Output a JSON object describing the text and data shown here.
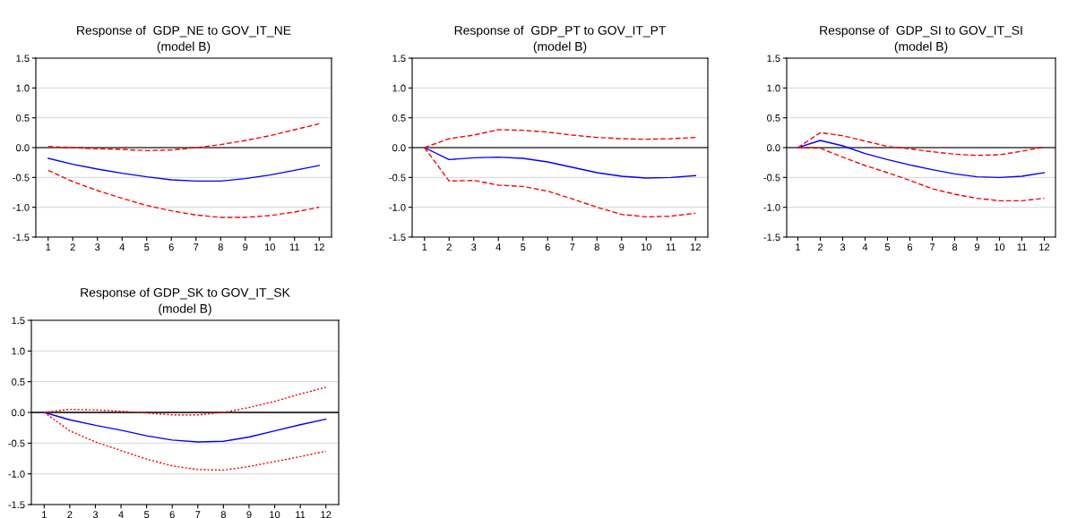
{
  "chart_data": [
    {
      "type": "line",
      "title": "Response of  GDP_NE to GOV_IT_NE",
      "subtitle": "(model B)",
      "categories": [
        "1",
        "2",
        "3",
        "4",
        "5",
        "6",
        "7",
        "8",
        "9",
        "10",
        "11",
        "12"
      ],
      "series": [
        {
          "color": "#0000ff",
          "line_style": "solid",
          "values": [
            -0.18,
            -0.28,
            -0.36,
            -0.43,
            -0.49,
            -0.54,
            -0.56,
            -0.56,
            -0.52,
            -0.46,
            -0.38,
            -0.3
          ]
        },
        {
          "color": "#ff0000",
          "line_style": "dashed",
          "values": [
            0.02,
            0.0,
            -0.02,
            -0.03,
            -0.05,
            -0.04,
            0.0,
            0.05,
            0.12,
            0.2,
            0.3,
            0.4
          ]
        },
        {
          "color": "#ff0000",
          "line_style": "dashed",
          "values": [
            -0.38,
            -0.57,
            -0.72,
            -0.85,
            -0.97,
            -1.06,
            -1.13,
            -1.17,
            -1.17,
            -1.14,
            -1.08,
            -1.0
          ]
        }
      ],
      "ylim": [
        -1.5,
        1.5
      ],
      "yticks": [
        {
          "value": -1.5,
          "label": "-1.5"
        },
        {
          "value": -1.0,
          "label": "-1.0"
        },
        {
          "value": -0.5,
          "label": "-0.5"
        },
        {
          "value": 0.0,
          "label": "0.0"
        },
        {
          "value": 0.5,
          "label": "0.5"
        },
        {
          "value": 1.0,
          "label": "1.0"
        },
        {
          "value": 1.5,
          "label": "1.5"
        }
      ],
      "ref_lines": [
        {
          "axis": "y",
          "value": 0,
          "color": "#404040"
        }
      ],
      "grid": "y"
    },
    {
      "type": "line",
      "title": "Response of  GDP_PT to GOV_IT_PT",
      "subtitle": "(model B)",
      "categories": [
        "1",
        "2",
        "3",
        "4",
        "5",
        "6",
        "7",
        "8",
        "9",
        "10",
        "11",
        "12"
      ],
      "series": [
        {
          "color": "#0000ff",
          "line_style": "solid",
          "values": [
            0,
            -0.2,
            -0.17,
            -0.16,
            -0.18,
            -0.24,
            -0.33,
            -0.42,
            -0.48,
            -0.51,
            -0.5,
            -0.47
          ]
        },
        {
          "color": "#ff0000",
          "line_style": "dashed",
          "values": [
            0,
            0.15,
            0.21,
            0.3,
            0.29,
            0.26,
            0.21,
            0.17,
            0.15,
            0.14,
            0.15,
            0.17
          ]
        },
        {
          "color": "#ff0000",
          "line_style": "dashed",
          "values": [
            0,
            -0.56,
            -0.55,
            -0.63,
            -0.65,
            -0.73,
            -0.86,
            -1.0,
            -1.12,
            -1.16,
            -1.15,
            -1.1
          ]
        }
      ],
      "ylim": [
        -1.5,
        1.5
      ],
      "yticks": [
        {
          "value": -1.5,
          "label": "-1.5"
        },
        {
          "value": -1.0,
          "label": "-1.0"
        },
        {
          "value": -0.5,
          "label": "-0.5"
        },
        {
          "value": 0.0,
          "label": "0.0"
        },
        {
          "value": 0.5,
          "label": "0.5"
        },
        {
          "value": 1.0,
          "label": "1.0"
        },
        {
          "value": 1.5,
          "label": "1.5"
        }
      ],
      "ref_lines": [
        {
          "axis": "y",
          "value": 0,
          "color": "#404040"
        }
      ],
      "grid": "y"
    },
    {
      "type": "line",
      "title": "Response of  GDP_SI to GOV_IT_SI",
      "subtitle": "(model B)",
      "categories": [
        "1",
        "2",
        "3",
        "4",
        "5",
        "6",
        "7",
        "8",
        "9",
        "10",
        "11",
        "12"
      ],
      "series": [
        {
          "color": "#0000ff",
          "line_style": "solid",
          "values": [
            0,
            0.12,
            0.03,
            -0.1,
            -0.2,
            -0.29,
            -0.37,
            -0.44,
            -0.49,
            -0.5,
            -0.48,
            -0.42
          ]
        },
        {
          "color": "#ff0000",
          "line_style": "dashed",
          "values": [
            0,
            0.25,
            0.2,
            0.11,
            0.02,
            -0.02,
            -0.07,
            -0.11,
            -0.13,
            -0.12,
            -0.06,
            0.01
          ]
        },
        {
          "color": "#ff0000",
          "line_style": "dashed",
          "values": [
            0,
            -0.01,
            -0.16,
            -0.3,
            -0.42,
            -0.55,
            -0.69,
            -0.78,
            -0.85,
            -0.89,
            -0.89,
            -0.85
          ]
        }
      ],
      "ylim": [
        -1.5,
        1.5
      ],
      "yticks": [
        {
          "value": -1.5,
          "label": "-1.5"
        },
        {
          "value": -1.0,
          "label": "-1.0"
        },
        {
          "value": -0.5,
          "label": "-0.5"
        },
        {
          "value": 0.0,
          "label": "0.0"
        },
        {
          "value": 0.5,
          "label": "0.5"
        },
        {
          "value": 1.0,
          "label": "1.0"
        },
        {
          "value": 1.5,
          "label": "1.5"
        }
      ],
      "ref_lines": [
        {
          "axis": "y",
          "value": 0,
          "color": "#404040"
        }
      ],
      "grid": "y"
    },
    {
      "type": "line",
      "title": "Response of GDP_SK to GOV_IT_SK",
      "subtitle": "(model B)",
      "categories": [
        "1",
        "2",
        "3",
        "4",
        "5",
        "6",
        "7",
        "8",
        "9",
        "10",
        "11",
        "12"
      ],
      "series": [
        {
          "color": "#0000ff",
          "line_style": "solid",
          "values": [
            0,
            -0.12,
            -0.21,
            -0.29,
            -0.38,
            -0.45,
            -0.48,
            -0.47,
            -0.4,
            -0.3,
            -0.2,
            -0.11
          ]
        },
        {
          "color": "#ff0000",
          "line_style": "dotted",
          "values": [
            0,
            0.05,
            0.04,
            0.02,
            -0.01,
            -0.04,
            -0.04,
            0.0,
            0.08,
            0.18,
            0.3,
            0.41
          ]
        },
        {
          "color": "#ff0000",
          "line_style": "dotted",
          "values": [
            0,
            -0.3,
            -0.48,
            -0.62,
            -0.76,
            -0.87,
            -0.93,
            -0.94,
            -0.88,
            -0.8,
            -0.72,
            -0.63
          ]
        }
      ],
      "ylim": [
        -1.5,
        1.5
      ],
      "yticks": [
        {
          "value": -1.5,
          "label": "-1.5"
        },
        {
          "value": -1.0,
          "label": "-1.0"
        },
        {
          "value": -0.5,
          "label": "-0.5"
        },
        {
          "value": 0.0,
          "label": "0.0"
        },
        {
          "value": 0.5,
          "label": "0.5"
        },
        {
          "value": 1.0,
          "label": "1.0"
        },
        {
          "value": 1.5,
          "label": "1.5"
        }
      ],
      "ref_lines": [
        {
          "axis": "y",
          "value": 0,
          "color": "#000000"
        }
      ],
      "grid": "y"
    }
  ]
}
